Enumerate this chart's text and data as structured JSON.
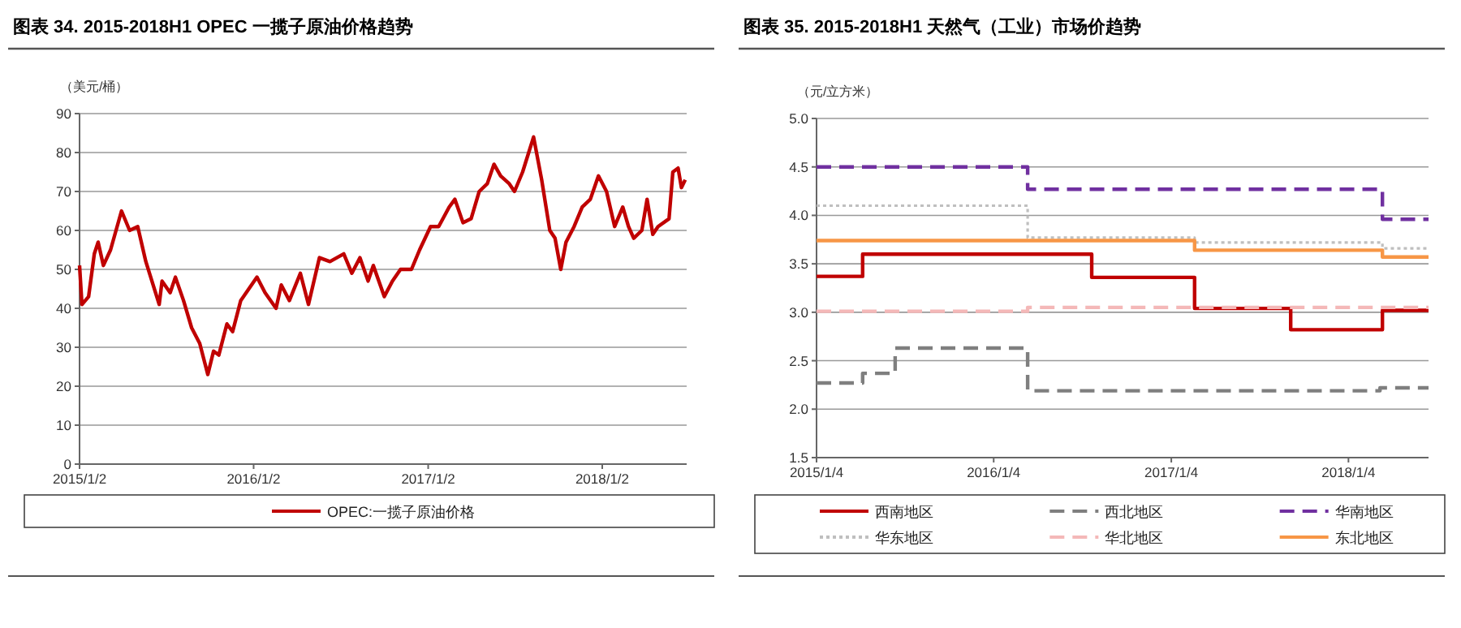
{
  "chart_data": [
    {
      "type": "line",
      "title": "图表 34. 2015-2018H1 OPEC 一揽子原油价格趋势",
      "ylabel": "（美元/桶）",
      "legend": "bottom",
      "grid": "y",
      "xlim": [
        "2015-01-02",
        "2018-06-28"
      ],
      "ylim": [
        0,
        90
      ],
      "yticks": [
        0,
        10,
        20,
        30,
        40,
        50,
        60,
        70,
        80,
        90
      ],
      "xticks": [
        {
          "value": "2015-01-02",
          "label": "2015/1/2"
        },
        {
          "value": "2016-01-02",
          "label": "2016/1/2"
        },
        {
          "value": "2017-01-02",
          "label": "2017/1/2"
        },
        {
          "value": "2018-01-02",
          "label": "2018/1/2"
        }
      ],
      "series": [
        {
          "name": "OPEC:一揽子原油价格",
          "color": "#c00000",
          "line_style": "solid",
          "x": [
            "2015-01-02",
            "2015-01-07",
            "2015-01-21",
            "2015-02-02",
            "2015-02-10",
            "2015-02-21",
            "2015-03-08",
            "2015-03-31",
            "2015-04-17",
            "2015-05-04",
            "2015-05-21",
            "2015-06-18",
            "2015-06-24",
            "2015-07-11",
            "2015-07-22",
            "2015-08-08",
            "2015-08-25",
            "2015-09-11",
            "2015-09-28",
            "2015-10-10",
            "2015-10-21",
            "2015-11-07",
            "2015-11-19",
            "2015-12-06",
            "2015-12-23",
            "2016-01-09",
            "2016-01-26",
            "2016-02-18",
            "2016-02-29",
            "2016-03-17",
            "2016-04-09",
            "2016-04-26",
            "2016-05-19",
            "2016-06-10",
            "2016-07-09",
            "2016-07-26",
            "2016-08-12",
            "2016-08-29",
            "2016-09-09",
            "2016-10-02",
            "2016-10-19",
            "2016-11-05",
            "2016-11-28",
            "2016-12-15",
            "2017-01-07",
            "2017-01-24",
            "2017-02-15",
            "2017-02-27",
            "2017-03-16",
            "2017-04-02",
            "2017-04-19",
            "2017-05-06",
            "2017-05-20",
            "2017-06-03",
            "2017-06-21",
            "2017-07-02",
            "2017-07-19",
            "2017-08-11",
            "2017-08-28",
            "2017-09-14",
            "2017-09-25",
            "2017-10-07",
            "2017-10-18",
            "2017-11-04",
            "2017-11-21",
            "2017-12-08",
            "2017-12-25",
            "2018-01-11",
            "2018-01-28",
            "2018-02-14",
            "2018-02-26",
            "2018-03-09",
            "2018-03-26",
            "2018-04-06",
            "2018-04-18",
            "2018-04-29",
            "2018-05-22",
            "2018-05-30",
            "2018-06-10",
            "2018-06-17",
            "2018-06-25"
          ],
          "values": [
            51,
            41,
            43,
            54,
            57,
            51,
            55,
            65,
            60,
            61,
            52,
            41,
            47,
            44,
            48,
            42,
            35,
            31,
            23,
            29,
            28,
            36,
            34,
            42,
            45,
            48,
            44,
            40,
            46,
            42,
            49,
            41,
            53,
            52,
            54,
            49,
            53,
            47,
            51,
            43,
            47,
            50,
            50,
            55,
            61,
            61,
            66,
            68,
            62,
            63,
            70,
            72,
            77,
            74,
            72,
            70,
            75,
            84,
            73,
            60,
            58,
            50,
            57,
            61,
            66,
            68,
            74,
            70,
            61,
            66,
            61,
            58,
            60,
            68,
            59,
            61,
            63,
            75,
            76,
            71,
            73
          ]
        }
      ]
    },
    {
      "type": "step",
      "title": "图表 35. 2015-2018H1 天然气（工业）市场价趋势",
      "ylabel": "（元/立方米）",
      "legend": "bottom",
      "grid": "y",
      "xlim": [
        "2015-01-04",
        "2018-06-18"
      ],
      "ylim": [
        1.5,
        5.0
      ],
      "yticks": [
        1.5,
        {
          "value": 2,
          "label": "2.0"
        },
        2.5,
        {
          "value": 3,
          "label": "3.0"
        },
        3.5,
        {
          "value": 4,
          "label": "4.0"
        },
        4.5,
        {
          "value": 5,
          "label": "5.0"
        }
      ],
      "xticks": [
        {
          "value": "2015-01-04",
          "label": "2015/1/4"
        },
        {
          "value": "2016-01-04",
          "label": "2016/1/4"
        },
        {
          "value": "2017-01-04",
          "label": "2017/1/4"
        },
        {
          "value": "2018-01-04",
          "label": "2018/1/4"
        }
      ],
      "series": [
        {
          "name": "西南地区",
          "color": "#c00000",
          "line_style": "solid",
          "x": [
            "2015-01-04",
            "2015-04-09",
            "2016-07-24",
            "2017-02-21",
            "2017-09-07",
            "2018-03-15",
            "2018-06-18"
          ],
          "values": [
            3.37,
            3.6,
            3.36,
            3.04,
            2.82,
            3.02,
            3.02
          ]
        },
        {
          "name": "西北地区",
          "color": "#7f7f7f",
          "line_style": "dashed",
          "x": [
            "2015-01-04",
            "2015-04-09",
            "2015-06-15",
            "2016-03-14",
            "2018-03-10",
            "2018-06-18"
          ],
          "values": [
            2.27,
            2.37,
            2.63,
            2.19,
            2.22,
            2.22
          ]
        },
        {
          "name": "华南地区",
          "color": "#7030a0",
          "line_style": "dashed",
          "x": [
            "2015-01-04",
            "2016-03-14",
            "2018-03-15",
            "2018-06-18"
          ],
          "values": [
            4.5,
            4.27,
            3.96,
            3.96
          ]
        },
        {
          "name": "华东地区",
          "color": "#bfbfbf",
          "line_style": "dotted",
          "x": [
            "2015-01-04",
            "2016-03-14",
            "2017-02-21",
            "2018-03-15",
            "2018-06-18"
          ],
          "values": [
            4.1,
            3.77,
            3.72,
            3.66,
            3.66
          ]
        },
        {
          "name": "华北地区",
          "color": "#f4b8b8",
          "line_style": "dashed",
          "x": [
            "2015-01-04",
            "2016-03-14",
            "2018-06-18"
          ],
          "values": [
            3.01,
            3.05,
            3.05
          ]
        },
        {
          "name": "东北地区",
          "color": "#f79646",
          "line_style": "solid",
          "x": [
            "2015-01-04",
            "2017-02-21",
            "2018-03-15",
            "2018-06-18"
          ],
          "values": [
            3.74,
            3.64,
            3.57,
            3.57
          ]
        }
      ]
    }
  ]
}
